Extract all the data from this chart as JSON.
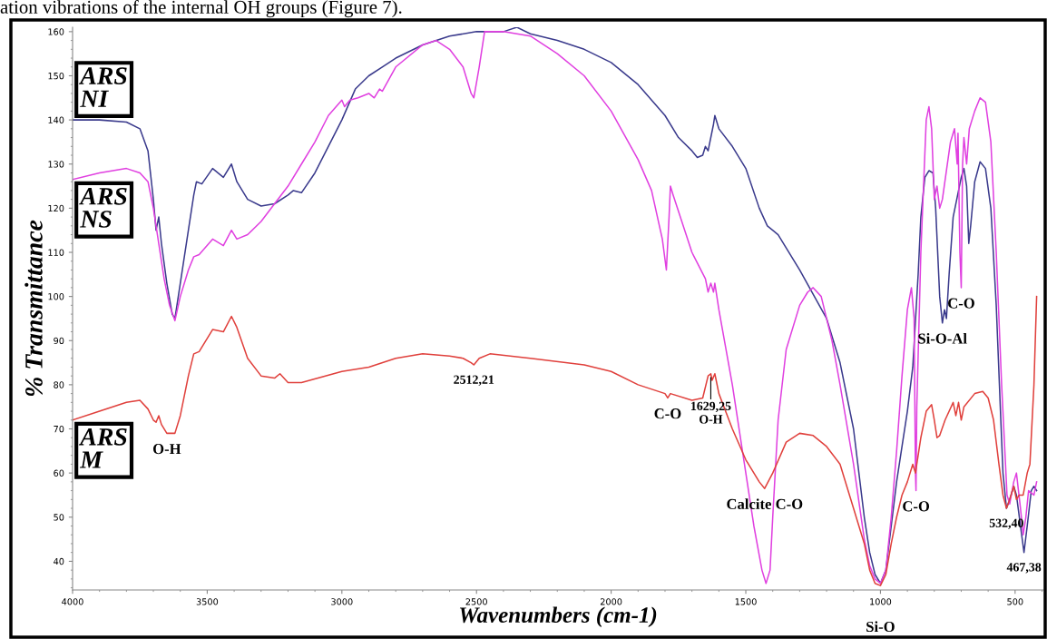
{
  "chart_data": {
    "type": "line",
    "xlabel": "Wavenumbers (cm-1)",
    "ylabel": "% Transmittance",
    "xlim": [
      4000,
      395
    ],
    "ylim": [
      33.5,
      161
    ],
    "xticks": [
      4000,
      3500,
      3000,
      2500,
      2000,
      1500,
      1000,
      500
    ],
    "yticks": [
      40,
      50,
      60,
      70,
      80,
      90,
      100,
      110,
      120,
      130,
      140,
      150,
      160
    ],
    "annotations": [
      "ation vibrations of the internal OH groups (Figure 7).",
      {
        "text": "O-H",
        "x": 3650,
        "y": 69
      },
      {
        "text": "2512,21",
        "x": 2510,
        "y": 84.5
      },
      {
        "text": "C-O",
        "x": 1790,
        "y": 77
      },
      {
        "text": "1629,25\nO-H",
        "x": 1630,
        "y": 82.5
      },
      {
        "text": "Calcite C-O",
        "x": 1430,
        "y": 56.5
      },
      {
        "text": "C-O",
        "x": 868,
        "y": 56
      },
      {
        "text": "532,40",
        "x": 532,
        "y": 52
      },
      {
        "text": "467,38",
        "x": 467,
        "y": 42
      },
      {
        "text": "Si-O-Al",
        "x": 770,
        "y": 94
      },
      {
        "text": "C-O",
        "x": 700,
        "y": 102
      },
      {
        "text": "Si-O",
        "x": 1000,
        "y": 35
      }
    ],
    "series": [
      {
        "name": "ARS\nNI",
        "color": "#3a3a8c",
        "x": [
          4000,
          3900,
          3800,
          3750,
          3720,
          3700,
          3690,
          3680,
          3670,
          3650,
          3630,
          3620,
          3600,
          3570,
          3550,
          3540,
          3520,
          3480,
          3440,
          3410,
          3390,
          3350,
          3300,
          3250,
          3200,
          3180,
          3150,
          3100,
          3000,
          2950,
          2900,
          2850,
          2800,
          2700,
          2600,
          2500,
          2400,
          2350,
          2300,
          2200,
          2100,
          2000,
          1900,
          1800,
          1750,
          1700,
          1680,
          1660,
          1650,
          1640,
          1620,
          1615,
          1600,
          1550,
          1500,
          1450,
          1420,
          1380,
          1300,
          1200,
          1150,
          1100,
          1080,
          1060,
          1040,
          1020,
          1000,
          980,
          960,
          940,
          920,
          900,
          880,
          860,
          850,
          835,
          820,
          805,
          795,
          780,
          770,
          762,
          755,
          745,
          730,
          700,
          690,
          680,
          672,
          665,
          650,
          630,
          610,
          590,
          570,
          555,
          545,
          532,
          520,
          505,
          495,
          480,
          467,
          455,
          440,
          430,
          420
        ],
        "values": [
          140,
          140,
          139.5,
          138,
          133,
          122,
          115,
          118,
          112,
          103,
          96,
          95,
          103,
          115,
          123,
          126,
          125.5,
          129,
          127,
          130,
          126,
          122,
          120.5,
          121,
          123,
          124,
          123.5,
          128,
          140,
          147,
          150,
          152,
          154,
          157,
          159,
          160,
          160,
          161,
          159.5,
          158,
          156,
          153,
          148,
          141,
          136,
          133,
          131.5,
          132,
          134,
          133,
          139,
          141,
          138,
          134,
          129,
          120,
          116,
          114,
          106,
          95,
          85,
          70,
          60,
          50,
          42,
          37,
          35,
          38,
          48,
          58,
          66,
          74,
          84,
          105,
          118,
          127,
          128.5,
          128,
          120,
          100,
          94,
          97,
          95,
          105,
          118,
          127,
          129,
          125,
          112,
          116,
          126,
          130.5,
          129,
          120,
          98,
          75,
          60,
          52,
          54,
          57,
          55,
          48,
          42,
          48,
          56,
          57,
          56
        ]
      },
      {
        "name": "ARS\nNS",
        "color": "#e040e0",
        "x": [
          4000,
          3900,
          3800,
          3750,
          3720,
          3700,
          3680,
          3660,
          3640,
          3620,
          3600,
          3570,
          3550,
          3530,
          3480,
          3440,
          3410,
          3390,
          3350,
          3300,
          3250,
          3200,
          3150,
          3100,
          3050,
          3000,
          2990,
          2970,
          2940,
          2900,
          2880,
          2860,
          2850,
          2800,
          2700,
          2650,
          2600,
          2550,
          2520,
          2510,
          2490,
          2470,
          2400,
          2300,
          2200,
          2100,
          2000,
          1900,
          1850,
          1810,
          1795,
          1790,
          1785,
          1780,
          1770,
          1700,
          1650,
          1640,
          1630,
          1620,
          1615,
          1600,
          1550,
          1500,
          1470,
          1440,
          1425,
          1410,
          1400,
          1380,
          1350,
          1300,
          1270,
          1250,
          1220,
          1180,
          1150,
          1100,
          1060,
          1040,
          1020,
          1000,
          980,
          960,
          940,
          920,
          900,
          885,
          875,
          870,
          868,
          865,
          850,
          830,
          820,
          810,
          800,
          790,
          780,
          770,
          740,
          725,
          715,
          712,
          705,
          700,
          695,
          690,
          680,
          670,
          650,
          630,
          610,
          590,
          570,
          550,
          530,
          520,
          505,
          495,
          480,
          470,
          460,
          450,
          430,
          420
        ],
        "values": [
          126.5,
          128,
          129,
          128,
          126,
          120,
          112,
          104,
          98,
          94.5,
          100,
          106,
          109,
          109.5,
          113,
          111.5,
          115,
          113,
          114,
          117,
          121,
          125,
          130,
          135,
          141,
          144.5,
          143,
          144.5,
          145,
          146,
          145,
          147,
          146.5,
          152,
          157,
          158,
          156,
          152,
          146,
          145,
          152,
          160,
          160,
          159,
          155,
          150,
          142,
          131,
          124,
          113,
          106,
          112,
          118,
          125,
          123,
          110,
          104,
          101,
          103,
          101,
          103,
          97,
          80,
          60,
          48,
          38,
          35,
          38,
          50,
          72,
          88,
          98,
          101,
          102,
          100,
          90,
          80,
          62,
          45,
          39,
          36,
          35,
          38,
          50,
          65,
          82,
          97,
          102,
          95,
          60,
          56,
          75,
          110,
          140,
          143,
          138,
          122,
          125,
          120,
          122,
          135,
          138,
          130,
          137,
          110,
          102,
          130,
          136,
          130,
          138,
          142,
          145,
          144,
          135,
          110,
          80,
          55,
          53,
          58,
          60,
          52,
          46,
          50,
          56,
          55,
          58
        ]
      },
      {
        "name": "ARS\nM",
        "color": "#e0403c",
        "x": [
          4000,
          3900,
          3800,
          3750,
          3720,
          3700,
          3690,
          3680,
          3670,
          3650,
          3620,
          3600,
          3570,
          3550,
          3530,
          3480,
          3440,
          3410,
          3390,
          3350,
          3300,
          3250,
          3230,
          3200,
          3150,
          3000,
          2900,
          2800,
          2700,
          2600,
          2550,
          2520,
          2510,
          2490,
          2450,
          2300,
          2100,
          2000,
          1900,
          1800,
          1790,
          1780,
          1700,
          1660,
          1640,
          1630,
          1625,
          1615,
          1600,
          1550,
          1500,
          1450,
          1430,
          1400,
          1350,
          1300,
          1250,
          1200,
          1150,
          1100,
          1060,
          1040,
          1020,
          1000,
          980,
          960,
          940,
          920,
          900,
          880,
          870,
          860,
          850,
          830,
          810,
          800,
          790,
          780,
          760,
          730,
          720,
          710,
          700,
          690,
          650,
          620,
          600,
          580,
          560,
          545,
          532,
          520,
          505,
          495,
          485,
          470,
          455,
          445,
          430,
          420
        ],
        "values": [
          72,
          74,
          76,
          76.5,
          74.5,
          72,
          71.5,
          73,
          71,
          69,
          69,
          73,
          82,
          87,
          87.5,
          92.5,
          92,
          95.5,
          93,
          86,
          82,
          81.5,
          82.5,
          80.5,
          80.5,
          83,
          84,
          86,
          87,
          86.5,
          86,
          85,
          84.5,
          86,
          87,
          86,
          84.5,
          83,
          80,
          78,
          77,
          78,
          76.5,
          77,
          82,
          82.5,
          81,
          82.5,
          78,
          70,
          63,
          58,
          56.5,
          60,
          67,
          69,
          68.5,
          66,
          62,
          52,
          44,
          38,
          35,
          34.5,
          37,
          44,
          50,
          55,
          58,
          62,
          60,
          64,
          68,
          74,
          75.5,
          72,
          68,
          68.5,
          72,
          76,
          73,
          76,
          72,
          75,
          78,
          78.5,
          77,
          72,
          62,
          55,
          52,
          54,
          57,
          54,
          55,
          55,
          60,
          62,
          80,
          100
        ]
      }
    ]
  }
}
